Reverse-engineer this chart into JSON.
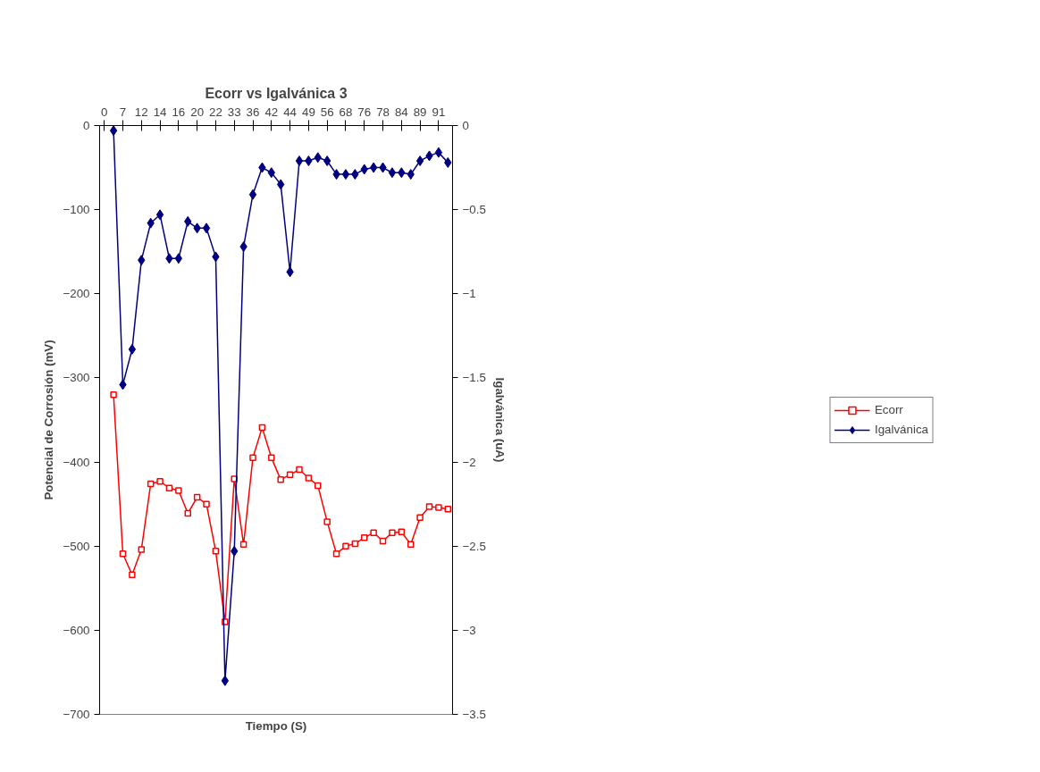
{
  "chart_data": {
    "type": "line",
    "title": "Ecorr vs Igalvánica 3",
    "xlabel": "Tiempo (S)",
    "ylabel": "Potencial de Corrosión (mV)",
    "y2label": "Igalvánica (uA)",
    "categories": [
      "0",
      null,
      "7",
      null,
      "12",
      null,
      "14",
      null,
      "16",
      null,
      "20",
      null,
      "22",
      null,
      "33",
      null,
      "36",
      null,
      "42",
      null,
      "44",
      null,
      "49",
      null,
      "56",
      null,
      "68",
      null,
      "76",
      null,
      "78",
      null,
      "84",
      null,
      "89",
      null,
      "91",
      null
    ],
    "ylim": [
      -700,
      0
    ],
    "yticks": [
      0,
      -100,
      -200,
      -300,
      -400,
      -500,
      -600,
      -700
    ],
    "y2lim": [
      -3.5,
      0
    ],
    "y2ticks": [
      0,
      -0.5,
      -1,
      -1.5,
      -2,
      -2.5,
      -3,
      -3.5
    ],
    "grid": false,
    "legend": "right",
    "series": [
      {
        "name": "Ecorr",
        "color": "#ff0000",
        "marker": "square",
        "values": [
          null,
          -320,
          -509,
          -534,
          -504,
          -426,
          -423,
          -431,
          -434,
          -461,
          -442,
          -450,
          -506,
          -590,
          -420,
          -498,
          -395,
          -359,
          -395,
          -421,
          -415,
          -409,
          -419,
          -428,
          -471,
          -509,
          -500,
          -497,
          -490,
          -484,
          -494,
          -484,
          -483,
          -498,
          -466,
          -453,
          -454,
          -456
        ]
      },
      {
        "name": "Igalvánica",
        "color": "#000080",
        "marker": "diamond",
        "axis": "y2",
        "values": [
          null,
          -0.03,
          -1.54,
          -1.33,
          -0.8,
          -0.58,
          -0.53,
          -0.79,
          -0.79,
          -0.57,
          -0.61,
          -0.61,
          -0.78,
          -3.3,
          -2.53,
          -0.72,
          -0.41,
          -0.25,
          -0.28,
          -0.35,
          -0.87,
          -0.21,
          -0.21,
          -0.19,
          -0.21,
          -0.29,
          -0.29,
          -0.29,
          -0.26,
          -0.25,
          -0.25,
          -0.28,
          -0.28,
          -0.29,
          -0.21,
          -0.18,
          -0.16,
          -0.22
        ]
      }
    ]
  }
}
